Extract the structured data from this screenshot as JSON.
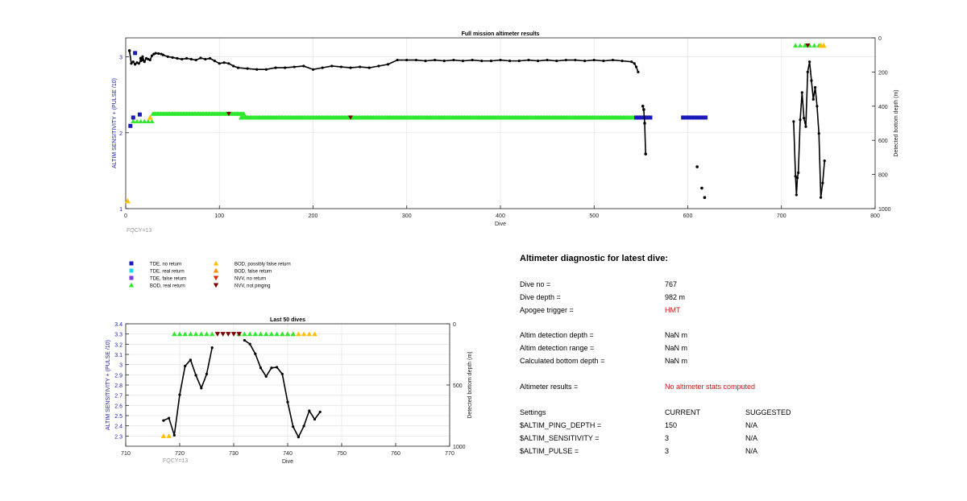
{
  "chart_data": [
    {
      "type": "scatter",
      "title": "Full mission altimeter results",
      "xlabel": "Dive",
      "ylabel_left": "ALTIM SENSITIVITY + (PULSE /10)",
      "ylabel_right": "Detected bottom depth (m)",
      "annotation": "FQCY=13",
      "xlim": [
        0,
        800
      ],
      "xticks": [
        0,
        100,
        200,
        300,
        400,
        500,
        600,
        700,
        800
      ],
      "ylim_left": [
        1,
        3.25
      ],
      "yticks_left": [
        1,
        2,
        3
      ],
      "ylim_right": [
        1000,
        0
      ],
      "yticks_right": [
        0,
        200,
        400,
        600,
        800,
        1000
      ],
      "grid": true,
      "bottom_depth_line": {
        "color": "#000000",
        "x": [
          4,
          6,
          8,
          10,
          12,
          14,
          16,
          18,
          20,
          22,
          24,
          26,
          28,
          30,
          32,
          35,
          38,
          40,
          45,
          50,
          55,
          60,
          65,
          70,
          75,
          80,
          85,
          90,
          95,
          100,
          105,
          110,
          115,
          120,
          130,
          140,
          150,
          160,
          170,
          180,
          190,
          200,
          210,
          220,
          230,
          240,
          250,
          260,
          270,
          280,
          290,
          300,
          310,
          320,
          330,
          340,
          350,
          360,
          370,
          380,
          390,
          400,
          410,
          420,
          430,
          440,
          450,
          460,
          470,
          480,
          490,
          500,
          510,
          520,
          530,
          540,
          543,
          545,
          547
        ],
        "y": [
          75,
          150,
          140,
          155,
          145,
          150,
          135,
          110,
          140,
          120,
          125,
          130,
          105,
          95,
          90,
          92,
          95,
          100,
          110,
          115,
          120,
          125,
          120,
          125,
          130,
          118,
          125,
          120,
          135,
          150,
          145,
          150,
          165,
          175,
          180,
          185,
          185,
          175,
          175,
          170,
          165,
          185,
          175,
          165,
          170,
          175,
          170,
          175,
          165,
          155,
          130,
          130,
          130,
          135,
          130,
          135,
          130,
          135,
          130,
          135,
          135,
          130,
          135,
          135,
          130,
          135,
          130,
          135,
          130,
          130,
          135,
          130,
          135,
          130,
          135,
          140,
          150,
          170,
          200
        ]
      },
      "bottom_depth_isolated": {
        "x": [
          4,
          16,
          18,
          552,
          553,
          554,
          555,
          610,
          615,
          618
        ],
        "y": [
          75,
          120,
          130,
          400,
          420,
          500,
          680,
          755,
          880,
          935
        ]
      },
      "bottom_depth_late": {
        "x": [
          713,
          715,
          716,
          717,
          718,
          720,
          722,
          724,
          726,
          728,
          730,
          732,
          734,
          736,
          738,
          740,
          742,
          744,
          746
        ],
        "y": [
          490,
          810,
          920,
          820,
          790,
          480,
          320,
          470,
          520,
          200,
          140,
          250,
          360,
          290,
          400,
          560,
          935,
          850,
          720
        ]
      },
      "tde_no_return": {
        "color": "#1a1ab8",
        "x": [
          5,
          8,
          10,
          15,
          545,
          548,
          551,
          554,
          557,
          560,
          595,
          598,
          601,
          604,
          607,
          610,
          613,
          616,
          619
        ],
        "y": [
          2.09,
          2.2,
          3.05,
          2.24,
          2.2,
          2.2,
          2.2,
          2.2,
          2.2,
          2.2,
          2.2,
          2.2,
          2.2,
          2.2,
          2.2,
          2.2,
          2.2,
          2.2,
          2.2
        ]
      },
      "bod_real_return": {
        "color": "#2ee82e",
        "x_range_row1": [
          29,
          127
        ],
        "y_row1": 2.25,
        "x_range_row2": [
          123,
          543
        ],
        "y_row2": 2.2,
        "x_extra": [
          8,
          12,
          16,
          20,
          24,
          28,
          715,
          720,
          725,
          730,
          735,
          740
        ],
        "y_extra": [
          2.15,
          2.15,
          2.15,
          2.15,
          2.15,
          2.15,
          3.15,
          3.15,
          3.15,
          3.15,
          3.15,
          3.15
        ]
      },
      "bod_possibly_false": {
        "color": "#ffc000",
        "x": [
          2,
          26,
          742,
          745
        ],
        "y": [
          1.1,
          2.2,
          3.15,
          3.15
        ]
      },
      "nvv_not_pinging": {
        "color": "#7a0000",
        "x": [
          110,
          240,
          728
        ],
        "y": [
          2.25,
          2.2,
          3.15
        ]
      }
    },
    {
      "type": "scatter",
      "title": "Last 50 dives",
      "xlabel": "Dive",
      "ylabel_left": "ALTIM SENSITIVITY + (PULSE /10)",
      "ylabel_right": "Detected bottom depth (m)",
      "annotation": "FQCY=13",
      "xlim": [
        710,
        770
      ],
      "xticks": [
        710,
        720,
        730,
        740,
        750,
        760,
        770
      ],
      "ylim_left": [
        2.2,
        3.4
      ],
      "yticks_left": [
        2.3,
        2.4,
        2.5,
        2.6,
        2.7,
        2.8,
        2.9,
        3,
        3.1,
        3.2,
        3.3,
        3.4
      ],
      "ylim_right": [
        1000,
        0
      ],
      "yticks_right": [
        0,
        500,
        1000
      ],
      "grid": true,
      "depth_segments": [
        {
          "x": [
            717,
            718,
            719,
            720,
            721,
            722,
            723,
            724,
            725,
            726
          ],
          "y": [
            790,
            770,
            910,
            580,
            345,
            295,
            420,
            525,
            410,
            195
          ]
        },
        {
          "x": [
            732,
            733,
            734,
            735,
            736,
            737,
            738,
            739,
            740,
            741,
            742,
            743,
            744,
            745,
            746
          ],
          "y": [
            135,
            165,
            245,
            360,
            430,
            360,
            355,
            410,
            640,
            840,
            925,
            835,
            710,
            780,
            720
          ]
        }
      ],
      "bod_possibly_false": {
        "x": [
          717,
          718,
          739,
          740,
          741,
          742,
          743,
          744,
          745
        ],
        "y": [
          2.3,
          2.3,
          3.3,
          3.3,
          3.3,
          3.3,
          3.3,
          3.3,
          3.3
        ]
      },
      "bod_real_return": {
        "x": [
          719,
          720,
          721,
          722,
          723,
          724,
          725,
          726,
          731,
          732,
          733,
          734,
          735,
          736,
          737,
          738,
          739,
          740,
          741
        ],
        "y": [
          3.3,
          3.3,
          3.3,
          3.3,
          3.3,
          3.3,
          3.3,
          3.3,
          3.3,
          3.3,
          3.3,
          3.3,
          3.3,
          3.3,
          3.3,
          3.3,
          3.3,
          3.3,
          3.3
        ]
      },
      "nvv_not_pinging": {
        "x": [
          727,
          728,
          729,
          730,
          731
        ],
        "y": [
          3.3,
          3.3,
          3.3,
          3.3,
          3.3
        ]
      }
    }
  ],
  "legend": [
    {
      "label": "TDE, no return",
      "marker": "square",
      "color": "#1a1ab8"
    },
    {
      "label": "TDE, real return",
      "marker": "square",
      "color": "#22d8e8"
    },
    {
      "label": "TDE, false return",
      "marker": "square",
      "color": "#7a3bd8"
    },
    {
      "label": "BOD, real return",
      "marker": "triangle-up",
      "color": "#2ee82e"
    },
    {
      "label": "BOD, possibly false return",
      "marker": "triangle-up",
      "color": "#ffc000"
    },
    {
      "label": "BOD, false return",
      "marker": "triangle-up",
      "color": "#ff8c00"
    },
    {
      "label": "NVV, no return",
      "marker": "triangle-down",
      "color": "#d82a00"
    },
    {
      "label": "NVV, not pinging",
      "marker": "triangle-down",
      "color": "#7a0000"
    }
  ],
  "diagnostic": {
    "title": "Altimeter diagnostic for latest dive:",
    "dive_no_label": "Dive no =",
    "dive_no": "767",
    "dive_depth_label": "Dive depth =",
    "dive_depth": "982 m",
    "apogee_label": "Apogee trigger =",
    "apogee": "HMT",
    "detection_depth_label": "Altim detection depth =",
    "detection_depth": "NaN m",
    "detection_range_label": "Altim detection range =",
    "detection_range": "NaN m",
    "calc_bottom_label": "Calculated bottom depth =",
    "calc_bottom": "NaN m",
    "results_label": "Altimeter results =",
    "results": "No altimeter stats computed",
    "settings_label": "Settings",
    "current_label": "CURRENT",
    "suggested_label": "SUGGESTED",
    "settings": [
      {
        "name": "$ALTIM_PING_DEPTH =",
        "current": "150",
        "suggested": "N/A"
      },
      {
        "name": "$ALTIM_SENSITIVITY =",
        "current": "3",
        "suggested": "N/A"
      },
      {
        "name": "$ALTIM_PULSE =",
        "current": "3",
        "suggested": "N/A"
      }
    ],
    "accent_red": "#cc1111"
  }
}
